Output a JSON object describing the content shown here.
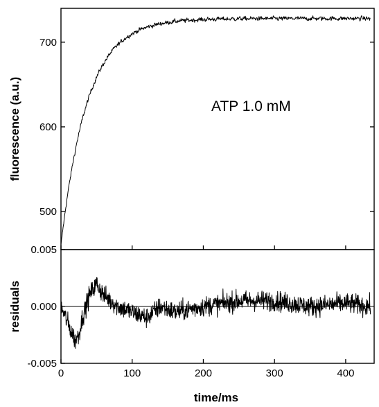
{
  "chart_data": [
    {
      "type": "line",
      "panel": "fluorescence",
      "title": "",
      "annotation": "ATP 1.0 mM",
      "xlabel": "time/ms",
      "ylabel": "fluorescence (a.u.)",
      "xlim": [
        0,
        440
      ],
      "ylim": [
        455,
        740
      ],
      "yticks": [
        500,
        600,
        700
      ],
      "ytick_labels": [
        "500",
        "600",
        "700"
      ],
      "grid": false,
      "legend": "none",
      "model": {
        "form": "single-exponential",
        "y0": 460,
        "plateau": 728,
        "k_per_ms": 0.027
      },
      "series": [
        {
          "x": [
            0,
            2,
            5,
            10,
            15,
            20,
            25,
            30,
            40,
            50,
            60,
            70,
            80,
            100,
            120,
            150,
            200,
            250,
            300,
            350,
            400,
            435
          ],
          "values": [
            460,
            474,
            495,
            525,
            560,
            595,
            625,
            645,
            668,
            685,
            697,
            706,
            712,
            719,
            723,
            726,
            728,
            728,
            728,
            728,
            728,
            728
          ],
          "noise_amplitude": 4
        }
      ]
    },
    {
      "type": "line",
      "panel": "residuals",
      "xlabel": "time/ms",
      "ylabel": "residuals",
      "xlim": [
        0,
        440
      ],
      "ylim": [
        -0.005,
        0.005
      ],
      "xticks": [
        0,
        100,
        200,
        300,
        400
      ],
      "xtick_labels": [
        "0",
        "100",
        "200",
        "300",
        "400"
      ],
      "yticks": [
        -0.005,
        0.0,
        0.005
      ],
      "ytick_labels": [
        "-0.005",
        "0.000",
        "0.005"
      ],
      "zero_line": true,
      "grid": false,
      "legend": "none",
      "series": [
        {
          "x": [
            0,
            10,
            20,
            25,
            30,
            40,
            50,
            60,
            70,
            80,
            100,
            120,
            140,
            160,
            200,
            250,
            300,
            350,
            400,
            435
          ],
          "values": [
            0.0,
            -0.0015,
            -0.003,
            -0.0025,
            -0.001,
            0.001,
            0.002,
            0.001,
            0.0005,
            0.0,
            -0.0005,
            -0.001,
            0.0,
            -0.0005,
            0.0,
            0.0005,
            0.0005,
            0.0,
            0.0003,
            0.0
          ],
          "noise_amplitude": 0.0015
        }
      ]
    }
  ]
}
